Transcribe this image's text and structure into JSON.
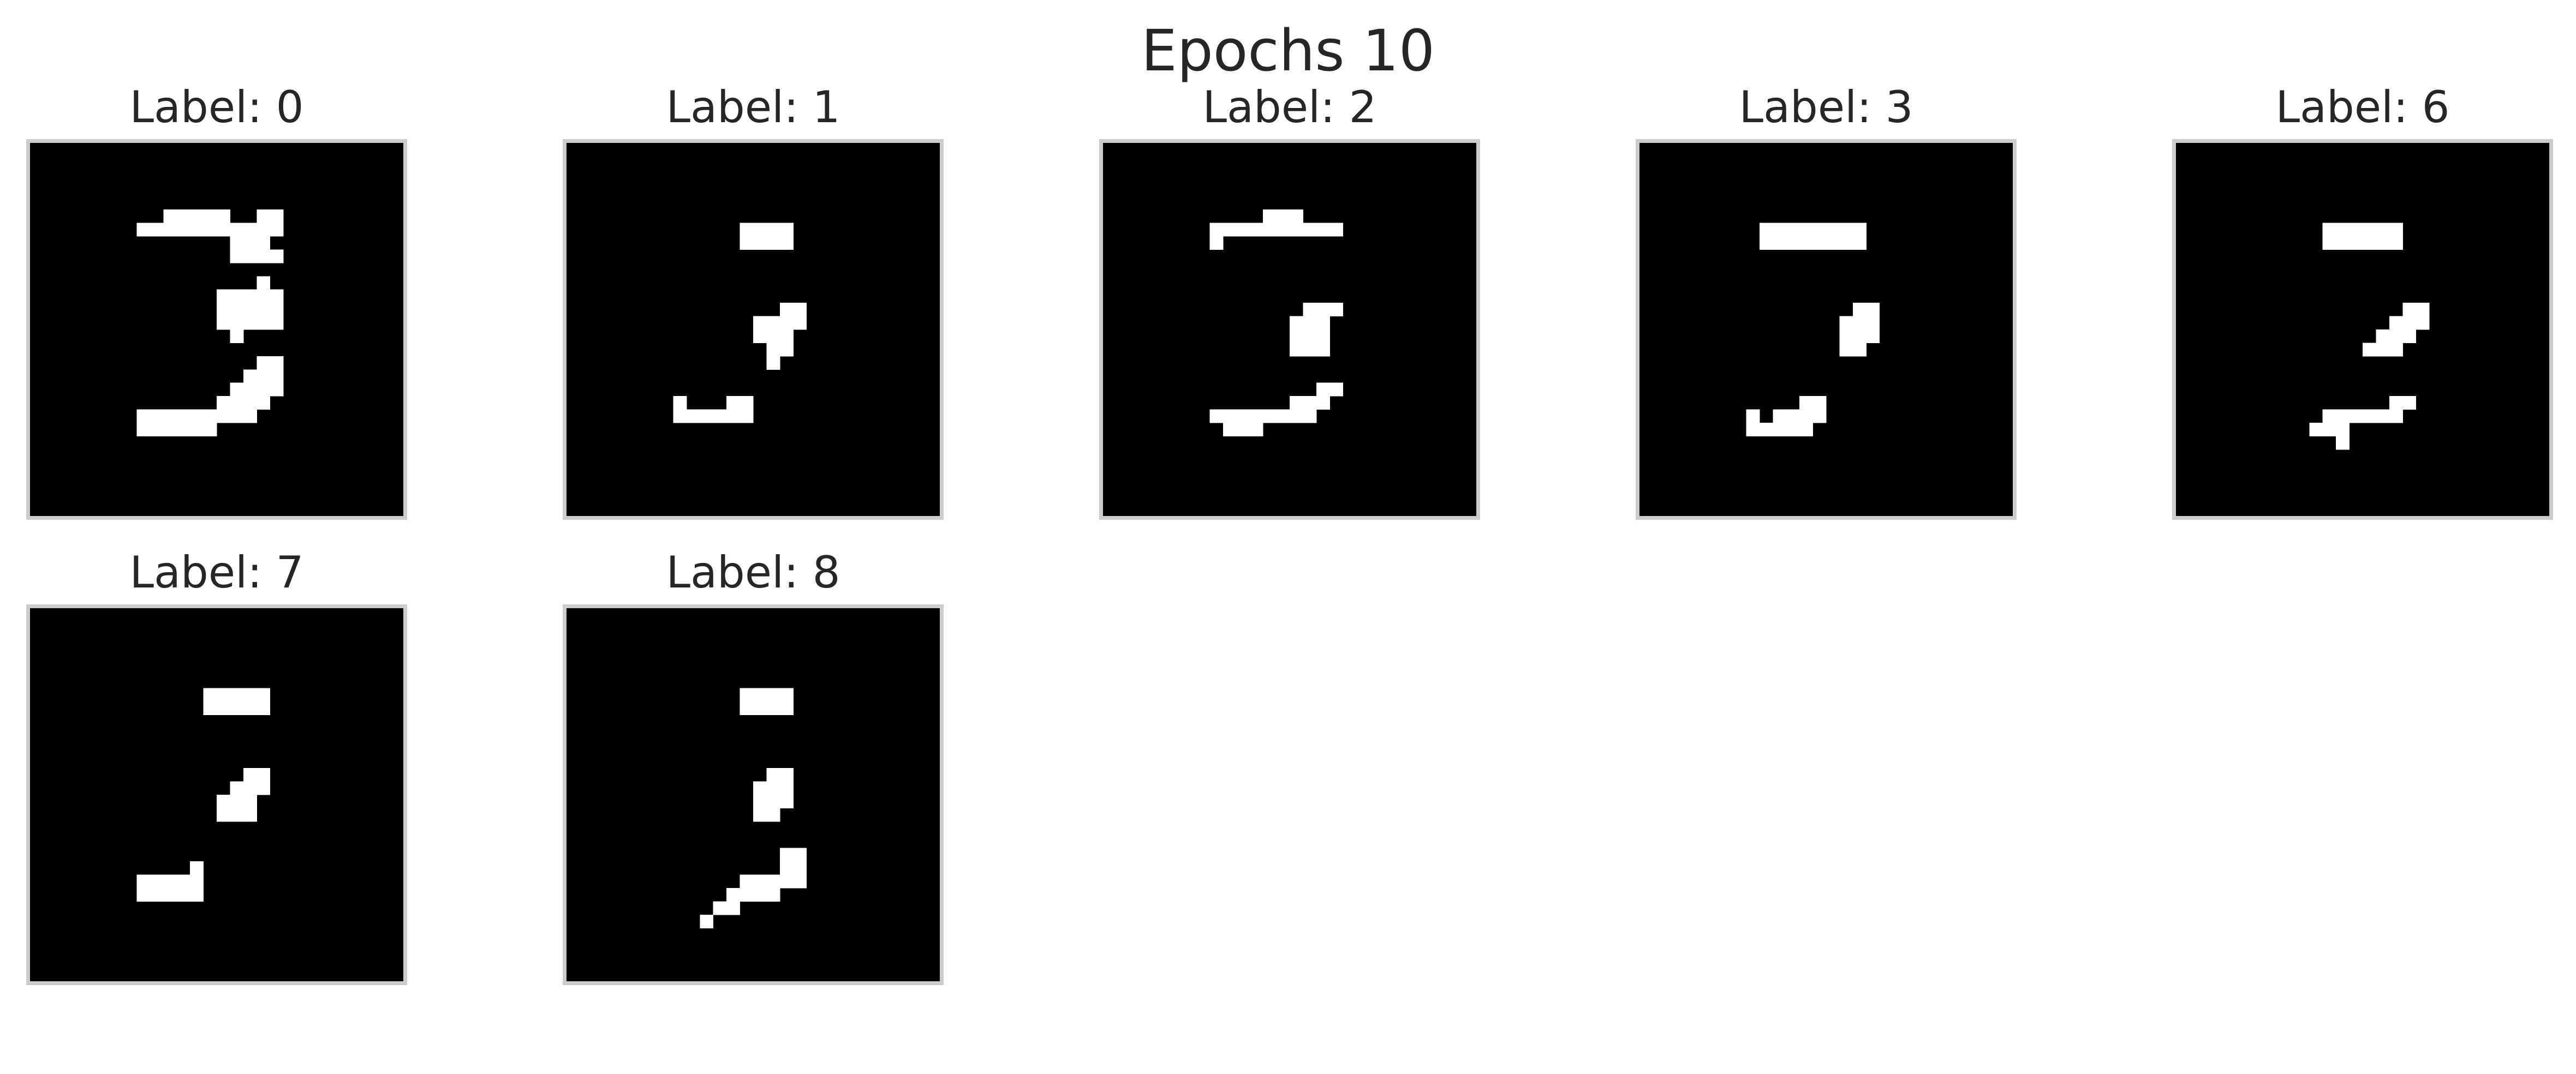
{
  "chart_data": {
    "type": "image-grid",
    "title": "Epochs 10",
    "colormap": "binary (black background, white pixels)",
    "grid": {
      "rows": 2,
      "cols": 5
    },
    "pixel_grid_size": 28,
    "panels": [
      {
        "title": "Label: 0",
        "pixels": [
          [
            8,
            6
          ],
          [
            9,
            6
          ],
          [
            10,
            6
          ],
          [
            11,
            6
          ],
          [
            12,
            6
          ],
          [
            13,
            6
          ],
          [
            14,
            6
          ],
          [
            15,
            6
          ],
          [
            16,
            6
          ],
          [
            17,
            6
          ],
          [
            18,
            6
          ],
          [
            10,
            5
          ],
          [
            11,
            5
          ],
          [
            12,
            5
          ],
          [
            13,
            5
          ],
          [
            14,
            5
          ],
          [
            17,
            5
          ],
          [
            18,
            5
          ],
          [
            15,
            7
          ],
          [
            16,
            7
          ],
          [
            17,
            7
          ],
          [
            17,
            8
          ],
          [
            16,
            8
          ],
          [
            15,
            8
          ],
          [
            18,
            8
          ],
          [
            16,
            12
          ],
          [
            18,
            12
          ],
          [
            14,
            11
          ],
          [
            15,
            11
          ],
          [
            16,
            11
          ],
          [
            17,
            11
          ],
          [
            18,
            11
          ],
          [
            14,
            12
          ],
          [
            15,
            12
          ],
          [
            17,
            12
          ],
          [
            17,
            10
          ],
          [
            15,
            13
          ],
          [
            16,
            13
          ],
          [
            17,
            13
          ],
          [
            18,
            13
          ],
          [
            14,
            13
          ],
          [
            15,
            14
          ],
          [
            17,
            16
          ],
          [
            18,
            16
          ],
          [
            17,
            17
          ],
          [
            18,
            17
          ],
          [
            16,
            17
          ],
          [
            15,
            18
          ],
          [
            16,
            18
          ],
          [
            17,
            18
          ],
          [
            18,
            18
          ],
          [
            14,
            19
          ],
          [
            15,
            19
          ],
          [
            16,
            19
          ],
          [
            17,
            19
          ],
          [
            12,
            20
          ],
          [
            13,
            20
          ],
          [
            14,
            20
          ],
          [
            15,
            20
          ],
          [
            16,
            20
          ],
          [
            11,
            20
          ],
          [
            10,
            20
          ],
          [
            9,
            20
          ],
          [
            8,
            20
          ],
          [
            8,
            21
          ],
          [
            9,
            21
          ],
          [
            10,
            21
          ],
          [
            11,
            21
          ],
          [
            12,
            21
          ],
          [
            13,
            21
          ]
        ]
      },
      {
        "title": "Label: 1",
        "pixels": [
          [
            13,
            6
          ],
          [
            14,
            6
          ],
          [
            15,
            6
          ],
          [
            16,
            6
          ],
          [
            13,
            7
          ],
          [
            14,
            7
          ],
          [
            15,
            7
          ],
          [
            16,
            7
          ],
          [
            16,
            12
          ],
          [
            17,
            12
          ],
          [
            14,
            13
          ],
          [
            15,
            13
          ],
          [
            16,
            13
          ],
          [
            17,
            13
          ],
          [
            14,
            14
          ],
          [
            15,
            14
          ],
          [
            16,
            14
          ],
          [
            15,
            15
          ],
          [
            16,
            15
          ],
          [
            15,
            16
          ],
          [
            12,
            19
          ],
          [
            13,
            19
          ],
          [
            12,
            20
          ],
          [
            13,
            20
          ],
          [
            11,
            20
          ],
          [
            10,
            20
          ],
          [
            9,
            20
          ],
          [
            8,
            20
          ],
          [
            8,
            19
          ]
        ]
      },
      {
        "title": "Label: 2",
        "pixels": [
          [
            12,
            6
          ],
          [
            13,
            6
          ],
          [
            14,
            6
          ],
          [
            15,
            6
          ],
          [
            16,
            6
          ],
          [
            17,
            6
          ],
          [
            11,
            6
          ],
          [
            10,
            6
          ],
          [
            9,
            6
          ],
          [
            8,
            6
          ],
          [
            12,
            5
          ],
          [
            13,
            5
          ],
          [
            14,
            5
          ],
          [
            8,
            7
          ],
          [
            15,
            12
          ],
          [
            16,
            12
          ],
          [
            17,
            12
          ],
          [
            14,
            13
          ],
          [
            15,
            13
          ],
          [
            16,
            13
          ],
          [
            14,
            14
          ],
          [
            15,
            14
          ],
          [
            16,
            14
          ],
          [
            14,
            15
          ],
          [
            15,
            15
          ],
          [
            16,
            15
          ],
          [
            16,
            18
          ],
          [
            17,
            18
          ],
          [
            14,
            19
          ],
          [
            15,
            19
          ],
          [
            16,
            19
          ],
          [
            13,
            20
          ],
          [
            14,
            20
          ],
          [
            15,
            20
          ],
          [
            12,
            20
          ],
          [
            11,
            20
          ],
          [
            10,
            20
          ],
          [
            9,
            20
          ],
          [
            8,
            20
          ],
          [
            10,
            21
          ],
          [
            11,
            21
          ],
          [
            9,
            21
          ]
        ]
      },
      {
        "title": "Label: 3",
        "pixels": [
          [
            13,
            6
          ],
          [
            14,
            6
          ],
          [
            15,
            6
          ],
          [
            16,
            6
          ],
          [
            13,
            7
          ],
          [
            14,
            7
          ],
          [
            15,
            7
          ],
          [
            16,
            7
          ],
          [
            9,
            6
          ],
          [
            10,
            6
          ],
          [
            11,
            6
          ],
          [
            12,
            6
          ],
          [
            9,
            7
          ],
          [
            10,
            7
          ],
          [
            11,
            7
          ],
          [
            12,
            7
          ],
          [
            16,
            12
          ],
          [
            17,
            12
          ],
          [
            15,
            13
          ],
          [
            16,
            13
          ],
          [
            17,
            13
          ],
          [
            15,
            14
          ],
          [
            16,
            14
          ],
          [
            17,
            14
          ],
          [
            15,
            15
          ],
          [
            16,
            15
          ],
          [
            12,
            19
          ],
          [
            13,
            19
          ],
          [
            12,
            20
          ],
          [
            13,
            20
          ],
          [
            11,
            20
          ],
          [
            10,
            20
          ],
          [
            12,
            21
          ],
          [
            11,
            21
          ],
          [
            10,
            21
          ],
          [
            9,
            21
          ],
          [
            8,
            21
          ],
          [
            8,
            20
          ]
        ]
      },
      {
        "title": "Label: 6",
        "pixels": [
          [
            13,
            6
          ],
          [
            14,
            6
          ],
          [
            15,
            6
          ],
          [
            16,
            6
          ],
          [
            13,
            7
          ],
          [
            14,
            7
          ],
          [
            15,
            7
          ],
          [
            16,
            7
          ],
          [
            12,
            6
          ],
          [
            12,
            7
          ],
          [
            11,
            7
          ],
          [
            11,
            6
          ],
          [
            17,
            12
          ],
          [
            18,
            12
          ],
          [
            16,
            13
          ],
          [
            17,
            13
          ],
          [
            18,
            13
          ],
          [
            15,
            14
          ],
          [
            16,
            14
          ],
          [
            17,
            14
          ],
          [
            14,
            15
          ],
          [
            15,
            15
          ],
          [
            16,
            15
          ],
          [
            16,
            19
          ],
          [
            17,
            19
          ],
          [
            15,
            20
          ],
          [
            16,
            20
          ],
          [
            14,
            20
          ],
          [
            13,
            20
          ],
          [
            12,
            20
          ],
          [
            11,
            20
          ],
          [
            12,
            21
          ],
          [
            11,
            21
          ],
          [
            10,
            21
          ],
          [
            12,
            22
          ]
        ]
      },
      {
        "title": "Label: 7",
        "pixels": [
          [
            14,
            6
          ],
          [
            15,
            6
          ],
          [
            16,
            6
          ],
          [
            17,
            6
          ],
          [
            14,
            7
          ],
          [
            15,
            7
          ],
          [
            16,
            7
          ],
          [
            17,
            7
          ],
          [
            13,
            6
          ],
          [
            13,
            7
          ],
          [
            16,
            12
          ],
          [
            17,
            12
          ],
          [
            15,
            13
          ],
          [
            16,
            13
          ],
          [
            17,
            13
          ],
          [
            14,
            14
          ],
          [
            15,
            14
          ],
          [
            16,
            14
          ],
          [
            14,
            15
          ],
          [
            15,
            15
          ],
          [
            16,
            15
          ],
          [
            12,
            19
          ],
          [
            12,
            20
          ],
          [
            11,
            20
          ],
          [
            10,
            20
          ],
          [
            9,
            20
          ],
          [
            8,
            20
          ],
          [
            12,
            21
          ],
          [
            11,
            21
          ],
          [
            10,
            21
          ],
          [
            9,
            21
          ],
          [
            8,
            21
          ]
        ]
      },
      {
        "title": "Label: 8",
        "pixels": [
          [
            13,
            6
          ],
          [
            14,
            6
          ],
          [
            15,
            6
          ],
          [
            16,
            6
          ],
          [
            13,
            7
          ],
          [
            14,
            7
          ],
          [
            15,
            7
          ],
          [
            16,
            7
          ],
          [
            15,
            12
          ],
          [
            16,
            12
          ],
          [
            14,
            13
          ],
          [
            15,
            13
          ],
          [
            16,
            13
          ],
          [
            14,
            14
          ],
          [
            15,
            14
          ],
          [
            16,
            14
          ],
          [
            14,
            15
          ],
          [
            15,
            15
          ],
          [
            16,
            18
          ],
          [
            17,
            18
          ],
          [
            16,
            19
          ],
          [
            17,
            19
          ],
          [
            14,
            20
          ],
          [
            15,
            20
          ],
          [
            16,
            20
          ],
          [
            17,
            20
          ],
          [
            13,
            20
          ],
          [
            12,
            21
          ],
          [
            13,
            21
          ],
          [
            14,
            21
          ],
          [
            15,
            21
          ],
          [
            11,
            22
          ],
          [
            12,
            22
          ],
          [
            10,
            23
          ]
        ]
      }
    ]
  }
}
